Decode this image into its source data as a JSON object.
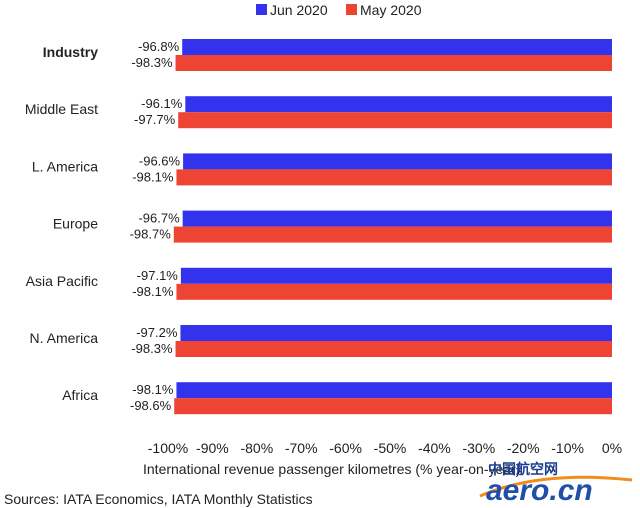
{
  "chart_data": {
    "type": "bar",
    "orientation": "horizontal",
    "categories": [
      "Industry",
      "Middle East",
      "L. America",
      "Europe",
      "Asia Pacific",
      "N. America",
      "Africa"
    ],
    "bold_categories": [
      "Industry"
    ],
    "series": [
      {
        "name": "Jun 2020",
        "color": "#3333ee",
        "values": [
          -96.8,
          -96.1,
          -96.6,
          -96.7,
          -97.1,
          -97.2,
          -98.1
        ],
        "labels": [
          "-96.8%",
          "-96.1%",
          "-96.6%",
          "-96.7%",
          "-97.1%",
          "-97.2%",
          "-98.1%"
        ]
      },
      {
        "name": "May 2020",
        "color": "#ee4433",
        "values": [
          -98.3,
          -97.7,
          -98.1,
          -98.7,
          -98.1,
          -98.3,
          -98.6
        ],
        "labels": [
          "-98.3%",
          "-97.7%",
          "-98.1%",
          "-98.7%",
          "-98.1%",
          "-98.3%",
          "-98.6%"
        ]
      }
    ],
    "xlim": [
      -100,
      0
    ],
    "x_ticks": [
      "-100%",
      "-90%",
      "-80%",
      "-70%",
      "-60%",
      "-50%",
      "-40%",
      "-30%",
      "-20%",
      "-10%",
      "0%"
    ],
    "xlabel": "International revenue passenger kilometres (% year-on-year)",
    "legend_position": "top",
    "grid": false
  },
  "source": "Sources: IATA Economics, IATA Monthly Statistics",
  "watermark": {
    "chinese": "中国航空网",
    "latin": "aero.cn",
    "colors": {
      "blue": "#1f4fa8",
      "orange": "#f28c1c"
    }
  }
}
